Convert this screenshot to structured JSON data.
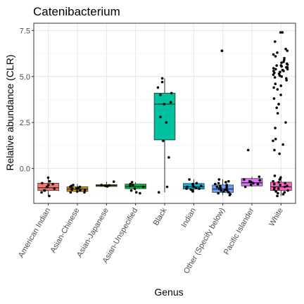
{
  "chart_data": {
    "type": "boxplot",
    "title": "Catenibacterium",
    "xlabel": "Genus",
    "ylabel": "Relative abundance (CLR)",
    "ylim": [
      -1.9,
      7.9
    ],
    "yticks": [
      0.0,
      2.5,
      5.0,
      7.5
    ],
    "ytick_labels": [
      "0.0",
      "2.5",
      "5.0",
      "7.5"
    ],
    "grid": true,
    "legend": "none",
    "categories": [
      "American Indian",
      "Asian-Chinese",
      "Asian-Japanese",
      "Asian-Unspecified",
      "Black",
      "Indian",
      "Other (Specify below)",
      "Pacific Islander",
      "White"
    ],
    "colors": [
      "#F8766D",
      "#D39200",
      "#93AA00",
      "#00BA38",
      "#00C19F",
      "#00B9E3",
      "#619CFF",
      "#DB72FB",
      "#FF61C3"
    ],
    "boxes": [
      {
        "q1": -1.2,
        "median": -1.05,
        "q3": -0.8,
        "whisker_low": -1.5,
        "whisker_high": -0.45
      },
      {
        "q1": -1.25,
        "median": -1.12,
        "q3": -1.0,
        "whisker_low": -1.35,
        "whisker_high": -0.85
      },
      {
        "q1": -0.98,
        "median": -0.93,
        "q3": -0.88,
        "whisker_low": -1.0,
        "whisker_high": -0.72
      },
      {
        "q1": -1.1,
        "median": -0.98,
        "q3": -0.85,
        "whisker_low": -1.2,
        "whisker_high": -0.75
      },
      {
        "q1": 1.55,
        "median": 3.5,
        "q3": 4.1,
        "whisker_low": -1.3,
        "whisker_high": 4.9
      },
      {
        "q1": -1.12,
        "median": -1.0,
        "q3": -0.82,
        "whisker_low": -1.3,
        "whisker_high": -0.6
      },
      {
        "q1": -1.3,
        "median": -1.12,
        "q3": -0.9,
        "whisker_low": -1.45,
        "whisker_high": -0.6
      },
      {
        "q1": -0.95,
        "median": -0.78,
        "q3": -0.55,
        "whisker_low": -1.0,
        "whisker_high": -0.45
      },
      {
        "q1": -1.2,
        "median": -1.0,
        "q3": -0.75,
        "whisker_low": -1.5,
        "whisker_high": -0.4
      }
    ],
    "points": [
      [
        [
          -0.5,
          -1.5,
          -0.8,
          -1.2,
          -1.0,
          -0.9,
          -1.3,
          -1.1,
          -0.7,
          -1.0,
          -1.2,
          -0.85
        ]
      ],
      [
        [
          -1.0,
          -1.3,
          -1.1,
          -0.9,
          -1.2,
          -1.15,
          -1.05,
          -1.25,
          -1.1,
          -1.0,
          -1.3,
          -1.2,
          -0.95,
          -1.1
        ]
      ],
      [
        [
          -0.72,
          -0.9,
          -0.95,
          -0.98,
          -0.92
        ]
      ],
      [
        [
          -0.75,
          -0.85,
          -1.0,
          -1.1,
          -1.2,
          -1.3,
          -0.9,
          -0.95,
          -1.35
        ]
      ],
      [
        [
          4.9,
          4.7,
          4.4,
          4.1,
          4.0,
          3.6,
          3.5,
          2.8,
          2.5,
          1.5,
          0.6,
          -1.0,
          -1.3
        ]
      ],
      [
        [
          -0.6,
          -0.9,
          -1.0,
          -1.1,
          -1.2,
          -0.8,
          -1.05,
          -0.95,
          -1.15,
          -1.25,
          -1.0,
          -0.85,
          -1.1
        ]
      ],
      [
        [
          6.4,
          6.4,
          -0.6,
          -0.8,
          -0.9,
          -1.0,
          -1.1,
          -1.2,
          -1.3,
          -1.4,
          -1.45,
          -0.7,
          -1.0,
          -1.15,
          -1.25,
          -0.85,
          -0.95,
          -1.05,
          -1.35,
          -1.2,
          -0.75,
          -1.1
        ]
      ],
      [
        [
          1.0,
          -0.45,
          -0.6,
          -0.7,
          -0.8,
          -0.9,
          -1.0,
          -0.65,
          -0.75,
          -0.85
        ]
      ],
      [
        [
          7.4,
          7.4,
          6.9,
          6.5,
          6.4,
          6.3,
          6.2,
          6.1,
          6.0,
          5.9,
          5.8,
          5.7,
          5.6,
          5.5,
          5.4,
          5.3,
          5.2,
          5.1,
          5.0,
          4.9,
          4.8,
          4.6,
          4.5,
          4.4,
          4.3,
          4.0,
          3.8,
          3.5,
          3.3,
          3.0,
          2.5,
          2.2,
          1.6,
          1.5,
          1.3,
          1.0,
          0.8,
          -0.4,
          -0.5,
          -0.6,
          -0.7,
          -0.8,
          -0.9,
          -1.0,
          -1.1,
          -1.2,
          -1.3,
          -1.4,
          -1.5,
          -0.75,
          -0.85,
          -0.95,
          -1.05,
          -1.15,
          -1.25,
          -1.35,
          5.45,
          5.35,
          5.25,
          5.15,
          5.55,
          5.65,
          5.75,
          5.05,
          4.95,
          5.5,
          5.3,
          5.6,
          5.4
        ]
      ]
    ]
  }
}
